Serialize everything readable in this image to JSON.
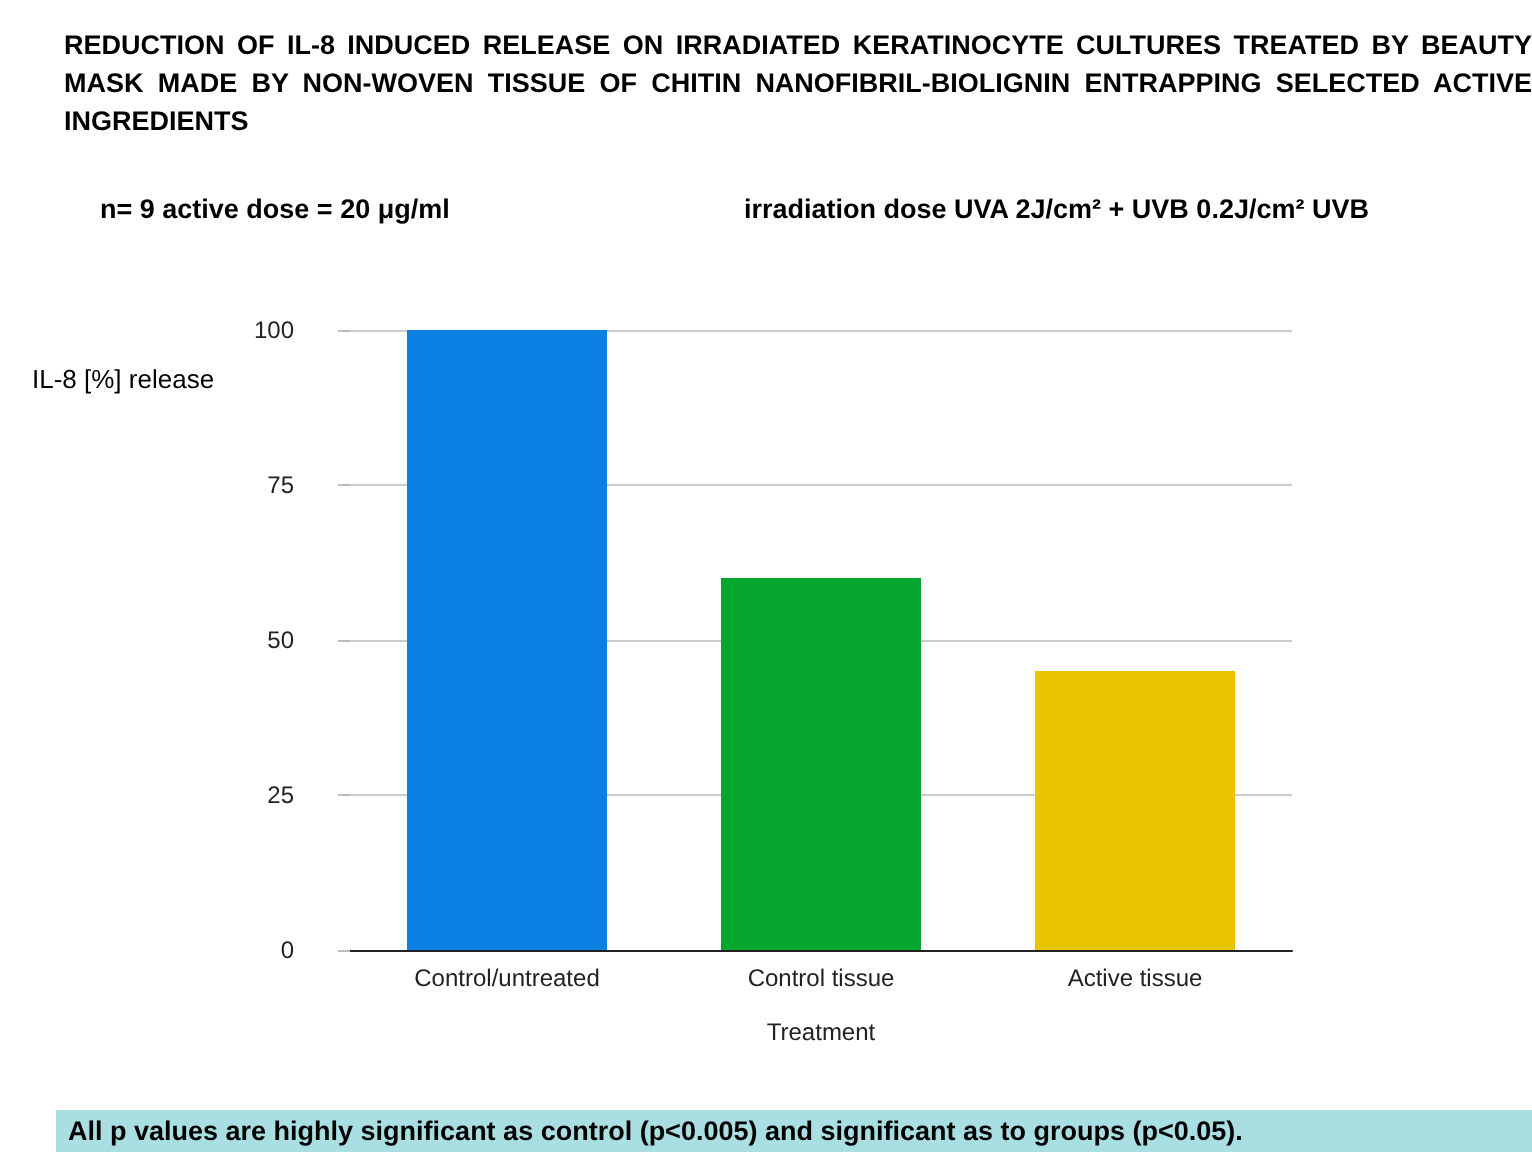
{
  "chart_data": {
    "type": "bar",
    "title": "REDUCTION OF IL-8 INDUCED RELEASE ON IRRADIATED KERATINOCYTE CULTURES TREATED BY BEAUTY MASK MADE BY NON-WOVEN TISSUE OF CHITIN NANOFIBRIL-BIOLIGNIN ENTRAPPING SELECTED ACTIVE INGREDIENTS",
    "annotations": [
      "n= 9 active dose = 20 μg/ml",
      "irradiation dose UVA 2J/cm² + UVB 0.2J/cm² UVB",
      "All p values are highly significant as control (p<0.005) and significant as to groups (p<0.05)."
    ],
    "xlabel": "Treatment",
    "ylabel": "IL-8 [%] release",
    "categories": [
      "Control/untreated",
      "Control tissue",
      "Active tissue"
    ],
    "values": [
      100,
      60,
      45
    ],
    "colors": [
      "#0a80e2",
      "#05a62e",
      "#eac400"
    ],
    "ylim": [
      0,
      100
    ],
    "yticks": [
      0,
      25,
      50,
      75,
      100
    ],
    "grid": "y"
  }
}
